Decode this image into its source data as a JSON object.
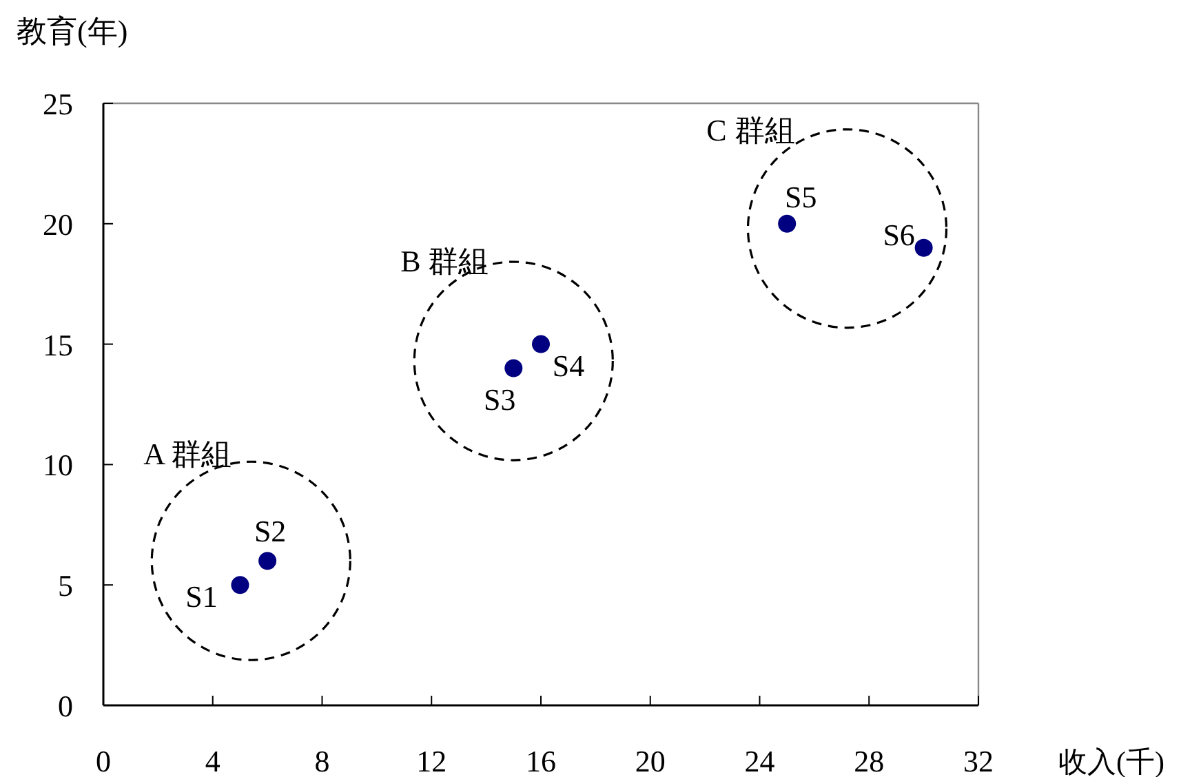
{
  "chart_data": {
    "type": "scatter",
    "xlabel": "收入(千)",
    "ylabel": "教育(年)",
    "x": [
      5,
      6,
      15,
      16,
      25,
      30
    ],
    "series": [
      {
        "color": "#000080",
        "values": [
          5,
          6,
          14,
          15,
          20,
          19
        ]
      }
    ],
    "marker": "circle",
    "grid": false,
    "xlim": [
      0,
      32
    ],
    "xticks": [
      0,
      4,
      8,
      12,
      16,
      20,
      24,
      28,
      32
    ],
    "ylim": [
      0,
      25
    ],
    "yticks": [
      0,
      5,
      10,
      15,
      20,
      25
    ],
    "annotations": [
      {
        "text": "S1",
        "x": 5,
        "y": 5
      },
      {
        "text": "S2",
        "x": 6,
        "y": 6
      },
      {
        "text": "S3",
        "x": 15,
        "y": 14
      },
      {
        "text": "S4",
        "x": 16,
        "y": 15
      },
      {
        "text": "S5",
        "x": 25,
        "y": 20
      },
      {
        "text": "S6",
        "x": 30,
        "y": 19
      },
      "A 群組",
      "B 群組",
      "C 群組"
    ]
  }
}
